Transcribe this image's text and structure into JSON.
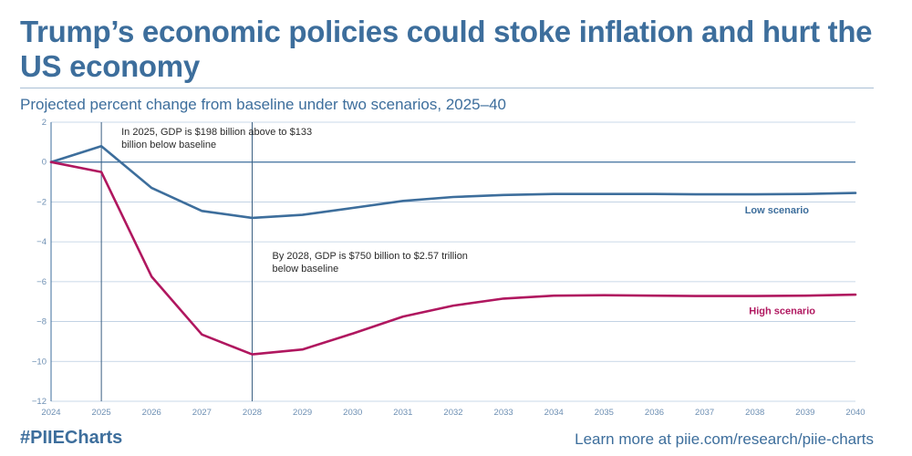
{
  "title": "Trump’s economic policies could stoke inflation and hurt the US economy",
  "subtitle": "Projected percent change from baseline under two scenarios, 2025–40",
  "footer": {
    "hashtag": "#PIIECharts",
    "link_text": "Learn more at piie.com/research/piie-charts"
  },
  "colors": {
    "low": "#3d6e9c",
    "high": "#b0175f",
    "grid": "#b9cce0",
    "axis": "#3d6e9c"
  },
  "chart_data": {
    "type": "line",
    "x": [
      2024,
      2025,
      2026,
      2027,
      2028,
      2029,
      2030,
      2031,
      2032,
      2033,
      2034,
      2035,
      2036,
      2037,
      2038,
      2039,
      2040
    ],
    "xlim": [
      2024,
      2040
    ],
    "ylim": [
      -12,
      2
    ],
    "yticks": [
      2,
      0,
      -2,
      -4,
      -6,
      -8,
      -10,
      -12
    ],
    "ytick_labels": [
      "2",
      "0",
      "−2",
      "−4",
      "−6",
      "−8",
      "−10",
      "−12"
    ],
    "grid": true,
    "series": [
      {
        "name": "Low scenario",
        "color": "#3d6e9c",
        "values": [
          0,
          0.8,
          -1.3,
          -2.45,
          -2.8,
          -2.65,
          -2.3,
          -1.95,
          -1.75,
          -1.65,
          -1.6,
          -1.6,
          -1.6,
          -1.62,
          -1.62,
          -1.6,
          -1.55
        ]
      },
      {
        "name": "High scenario",
        "color": "#b0175f",
        "values": [
          0,
          -0.5,
          -5.75,
          -8.65,
          -9.65,
          -9.4,
          -8.6,
          -7.75,
          -7.2,
          -6.85,
          -6.7,
          -6.68,
          -6.7,
          -6.72,
          -6.72,
          -6.7,
          -6.65
        ]
      }
    ],
    "annotations": [
      {
        "x": 2025,
        "lines": [
          "In 2025, GDP is $198 billion above to $133",
          "billion below baseline"
        ]
      },
      {
        "x": 2028,
        "lines": [
          "By 2028, GDP is $750 billion to $2.57 trillion",
          "below baseline"
        ]
      }
    ]
  }
}
